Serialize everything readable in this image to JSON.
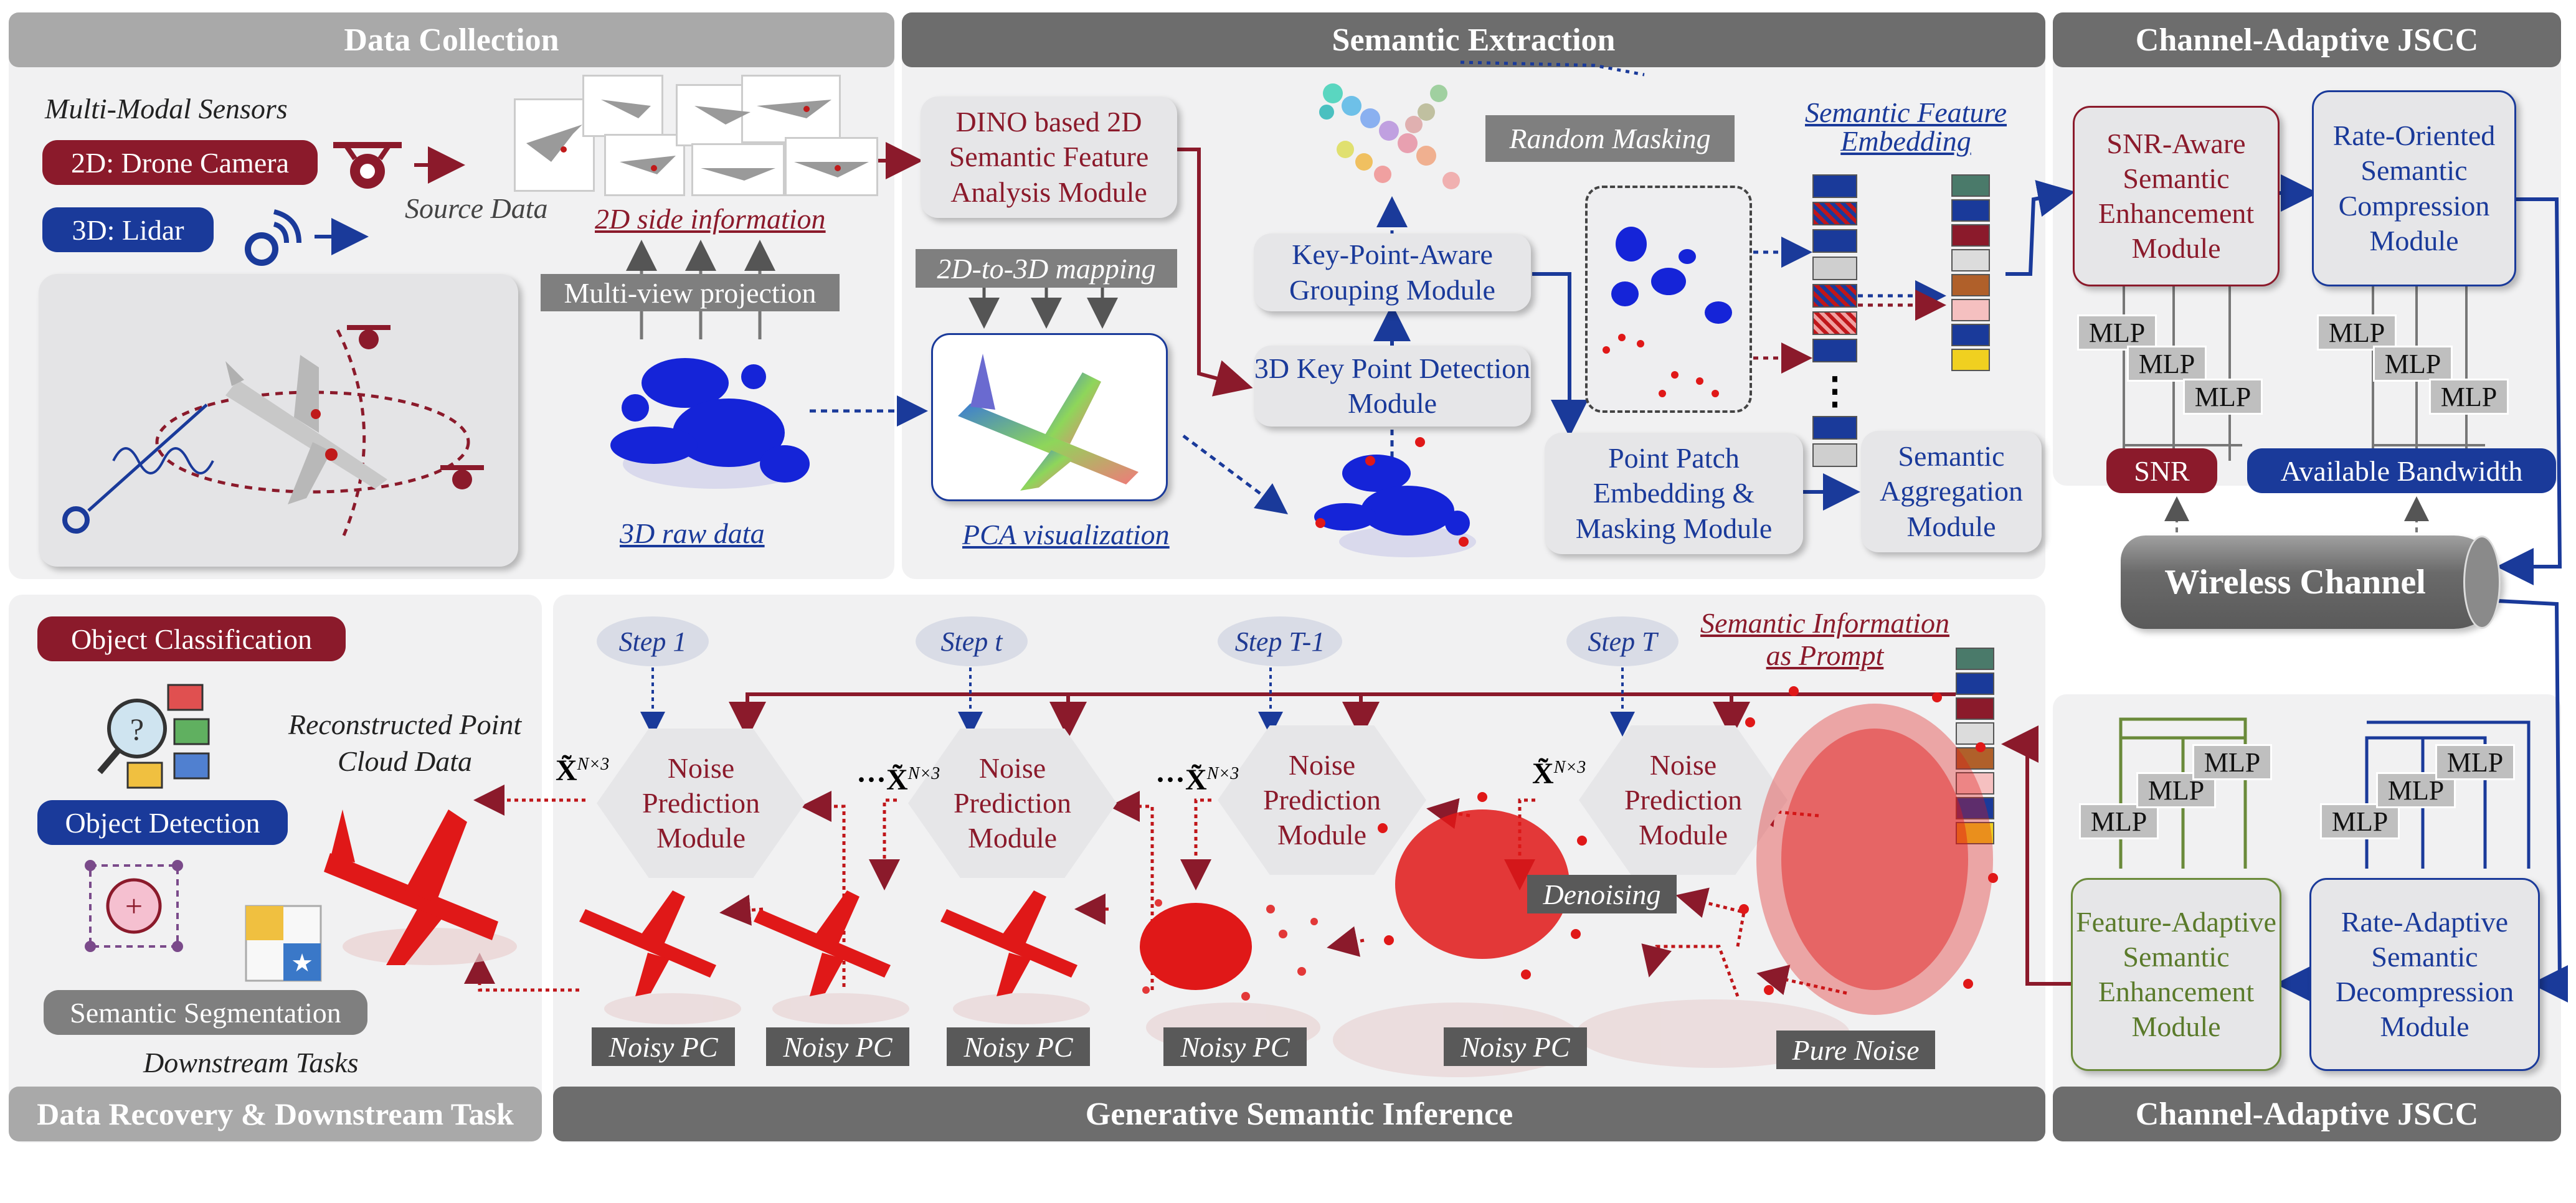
{
  "headers": {
    "data_collection": "Data Collection",
    "semantic_extraction": "Semantic Extraction",
    "jscc_top": "Channel-Adaptive JSCC",
    "data_recovery": "Data Recovery & Downstream Task",
    "generative": "Generative Semantic Inference",
    "jscc_bottom": "Channel-Adaptive JSCC"
  },
  "collection": {
    "sensors_title": "Multi-Modal Sensors",
    "drone_camera": "2D: Drone Camera",
    "lidar": "3D: Lidar",
    "source_data": "Source Data",
    "side_info": "2D side information",
    "multiview": "Multi-view projection",
    "raw_data": "3D raw data"
  },
  "extraction": {
    "dino": "DINO based 2D Semantic Feature Analysis Module",
    "mapping": "2D-to-3D mapping",
    "pca": "PCA visualization",
    "keypoint_grouping": "Key-Point-Aware Grouping Module",
    "keypoint_detection": "3D Key Point Detection Module",
    "random_masking": "Random Masking",
    "feature_embedding": "Semantic Feature Embedding",
    "patch_embedding": "Point Patch Embedding & Masking Module",
    "aggregation": "Semantic Aggregation Module",
    "vdots": "⋮"
  },
  "jscc": {
    "snr_enhancement": "SNR-Aware Semantic Enhancement Module",
    "rate_compression": "Rate-Oriented Semantic Compression Module",
    "mlp": "MLP",
    "snr": "SNR",
    "bandwidth": "Available Bandwidth",
    "wireless": "Wireless Channel",
    "feature_adaptive": "Feature-Adaptive Semantic Enhancement Module",
    "rate_adaptive": "Rate-Adaptive Semantic Decompression Module"
  },
  "recovery": {
    "classification": "Object Classification",
    "detection": "Object Detection",
    "segmentation": "Semantic Segmentation",
    "downstream": "Downstream Tasks",
    "reconstructed": "Reconstructed Point Cloud Data"
  },
  "generative": {
    "steps": [
      "Step 1",
      "Step t",
      "Step T-1",
      "Step T"
    ],
    "noise_module": "Noise Prediction Module",
    "prompt": "Semantic Information as Prompt",
    "denoising": "Denoising",
    "noisy_pc": "Noisy PC",
    "pure_noise": "Pure Noise",
    "xtilde": "X̃",
    "superscript": "N×3",
    "dots": "···"
  },
  "colors": {
    "dark_red": "#8b1a2b",
    "dark_blue": "#1a3a9a",
    "header_gray": "#6d6d6d",
    "light_header": "#a9a9a9",
    "panel": "#f1f1f2",
    "point_red": "#e01818",
    "point_blue": "#1524d8",
    "green": "#6a8a3a"
  }
}
